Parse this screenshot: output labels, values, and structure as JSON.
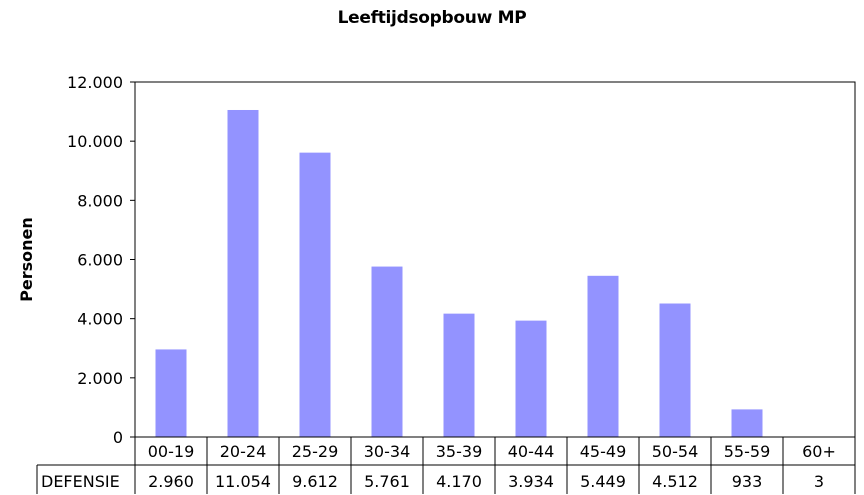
{
  "chart_data": {
    "type": "bar",
    "title": "Leeftijdsopbouw MP",
    "xlabel": "",
    "ylabel": "Personen",
    "ylim": [
      0,
      12000
    ],
    "yticks": [
      "0",
      "2.000",
      "4.000",
      "6.000",
      "8.000",
      "10.000",
      "12.000"
    ],
    "grid": false,
    "legend": "none",
    "bar_color": "#9393ff",
    "categories": [
      "00-19",
      "20-24",
      "25-29",
      "30-34",
      "35-39",
      "40-44",
      "45-49",
      "50-54",
      "55-59",
      "60+"
    ],
    "series": [
      {
        "name": "DEFENSIE",
        "values": [
          2960,
          11054,
          9612,
          5761,
          4170,
          3934,
          5449,
          4512,
          933,
          3
        ],
        "labels": [
          "2.960",
          "11.054",
          "9.612",
          "5.761",
          "4.170",
          "3.934",
          "5.449",
          "4.512",
          "933",
          "3"
        ]
      }
    ]
  }
}
